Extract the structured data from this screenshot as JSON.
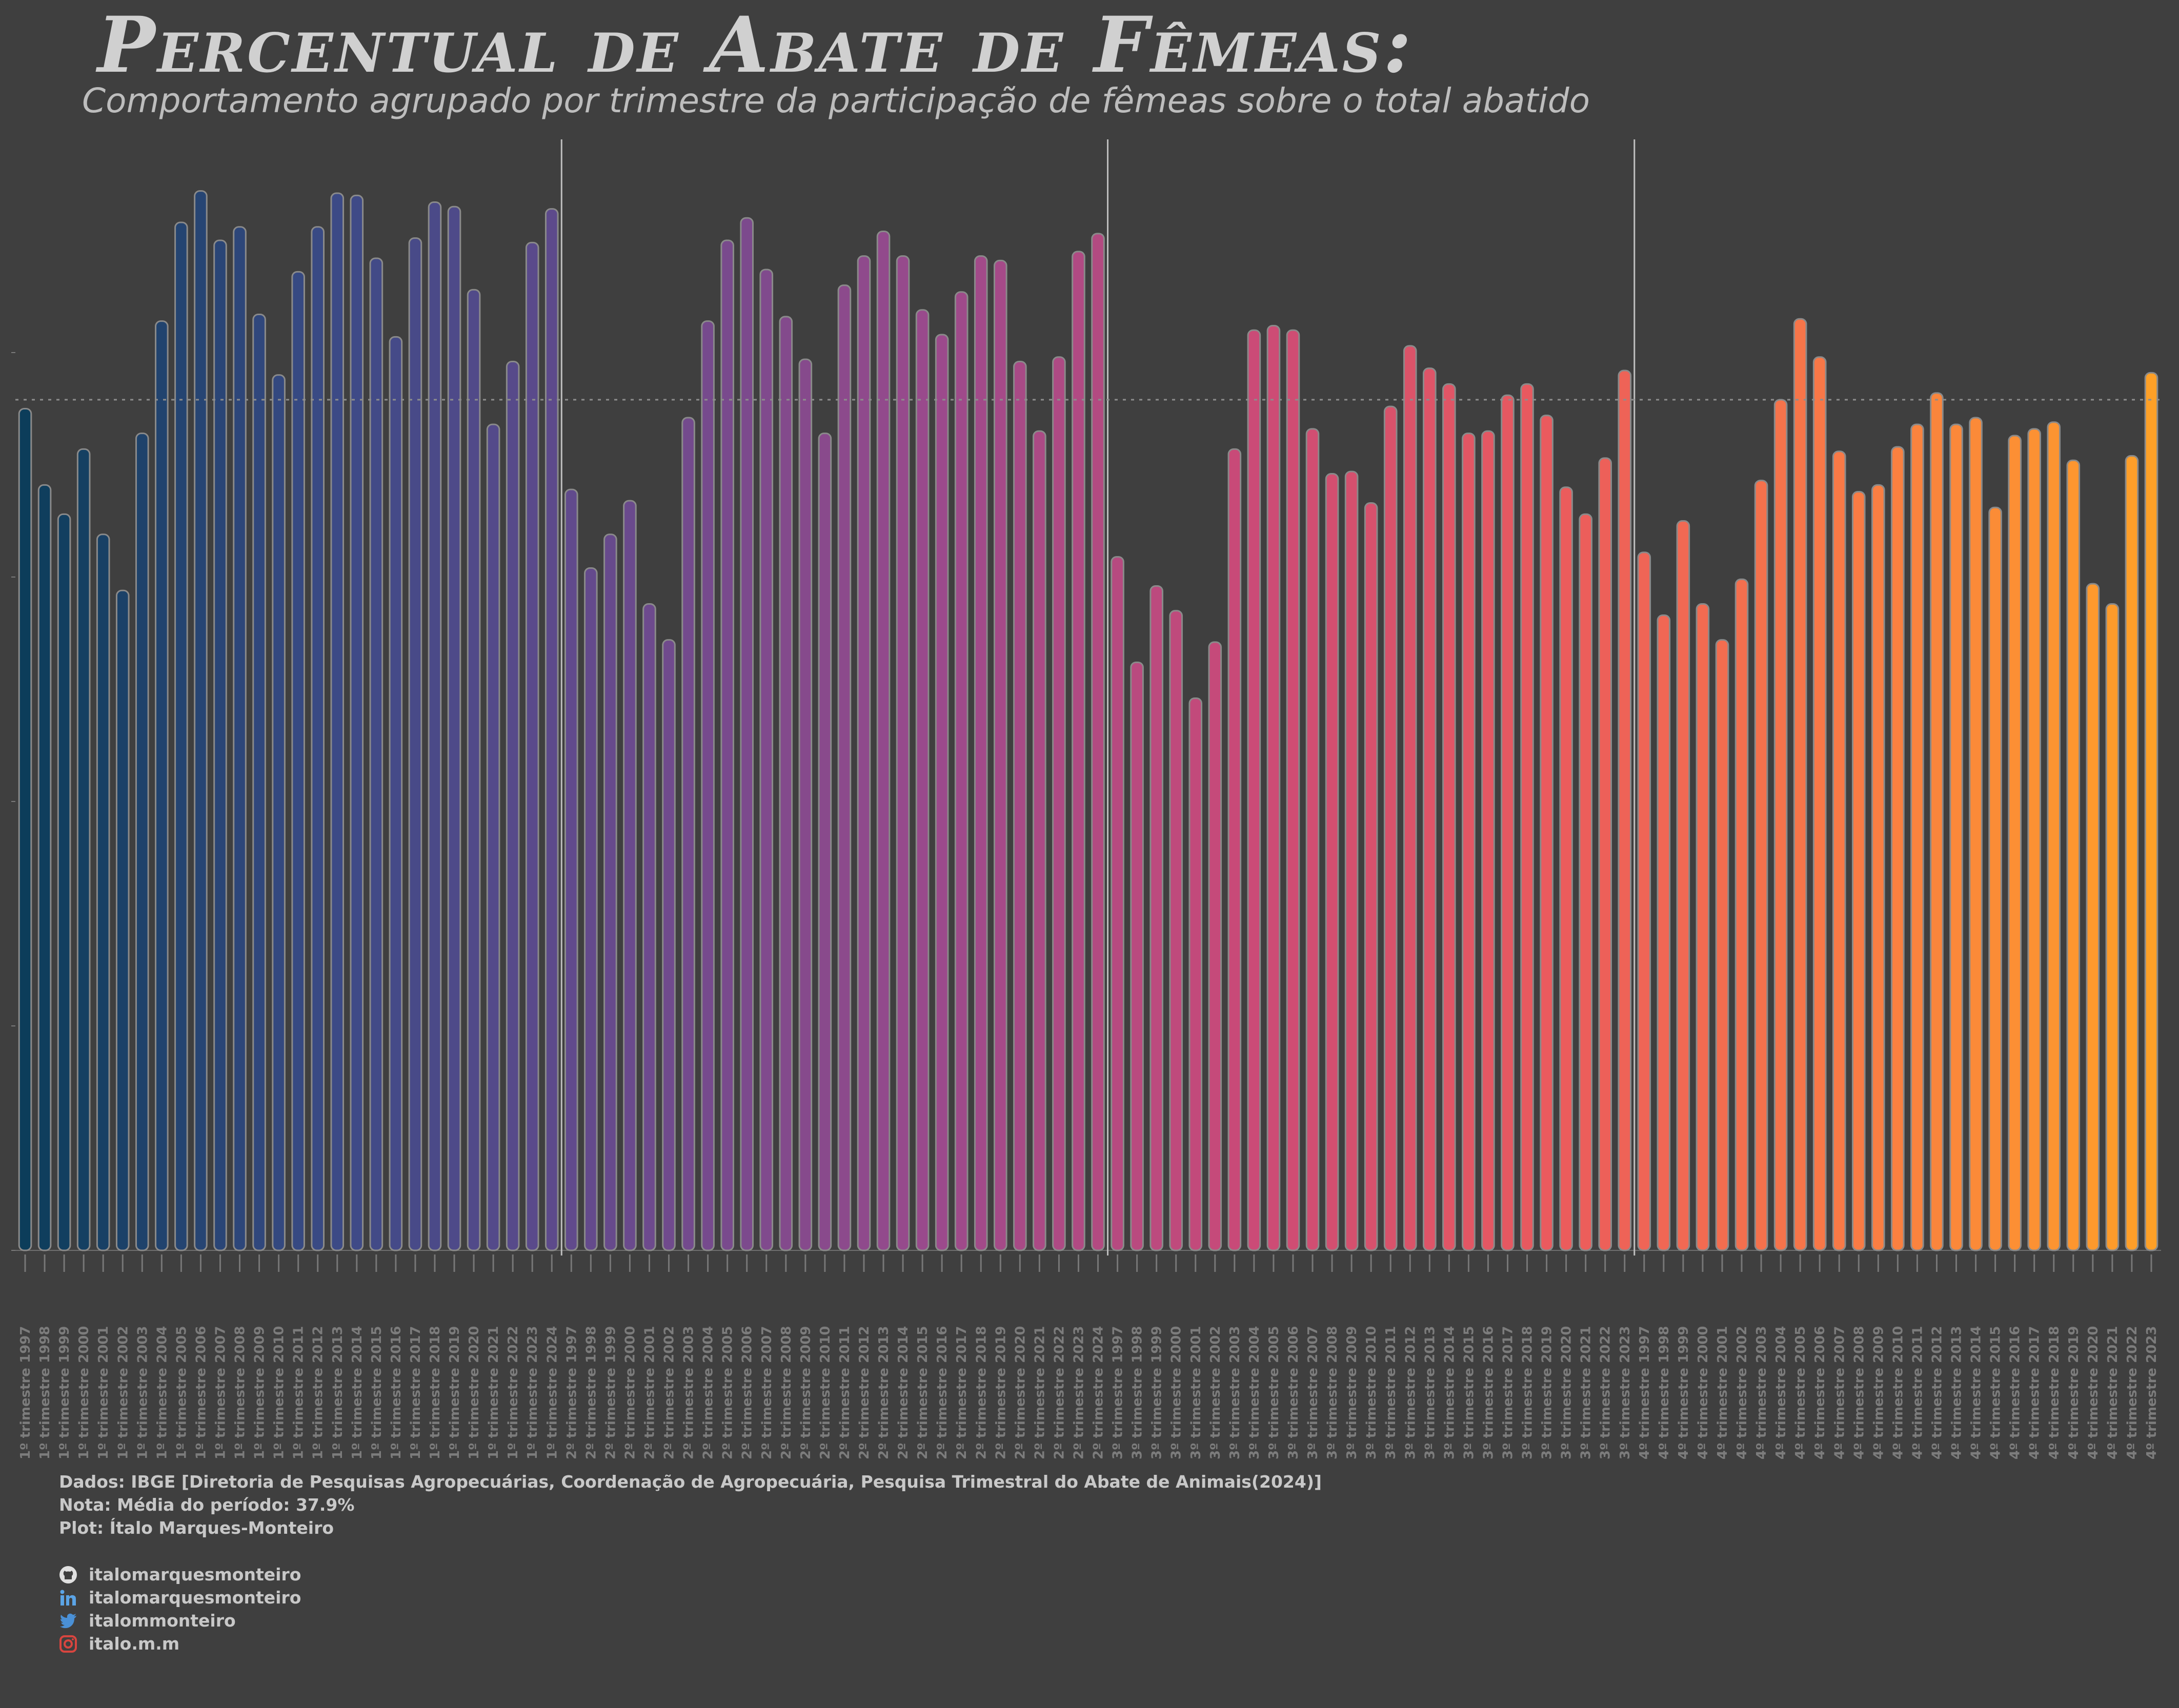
{
  "header": {
    "title": "Percentual de Abate de Fêmeas:",
    "subtitle": "Comportamento agrupado por trimestre da participação de fêmeas sobre o total abatido"
  },
  "footer": {
    "source": "Dados: IBGE [Diretoria de Pesquisas Agropecuárias, Coordenação de Agropecuária, Pesquisa Trimestral do Abate de Animais(2024)]",
    "note": "Nota: Média do período: 37.9%",
    "plot": "Plot: Ítalo Marques-Monteiro",
    "social": [
      {
        "icon": "github-icon",
        "label": "italomarquesmonteiro"
      },
      {
        "icon": "linkedin-icon",
        "label": "italomarquesmonteiro"
      },
      {
        "icon": "twitter-icon",
        "label": "italommonteiro"
      },
      {
        "icon": "instagram-icon",
        "label": "italo.m.m"
      }
    ]
  },
  "chart_data": {
    "type": "bar",
    "mean_line": 37.9,
    "ylim": [
      0,
      50
    ],
    "grid": false,
    "gradient_colors": [
      "#0c3d5a",
      "#3b4a86",
      "#6a4a8d",
      "#9b4a8c",
      "#c94a78",
      "#ea5a5e",
      "#f97a45",
      "#fea027"
    ],
    "groups": [
      {
        "quarter": "1º trimestre",
        "years": [
          1997,
          1998,
          1999,
          2000,
          2001,
          2002,
          2003,
          2004,
          2005,
          2006,
          2007,
          2008,
          2009,
          2010,
          2011,
          2012,
          2013,
          2014,
          2015,
          2016,
          2017,
          2018,
          2019,
          2020,
          2021,
          2022,
          2023,
          2024
        ],
        "values": [
          37.5,
          34.1,
          32.8,
          35.7,
          31.9,
          29.4,
          36.4,
          41.4,
          45.8,
          47.2,
          45.0,
          45.6,
          41.7,
          39.0,
          43.6,
          45.6,
          47.1,
          47.0,
          44.2,
          40.7,
          45.1,
          46.7,
          46.5,
          42.8,
          36.8,
          39.6,
          44.9,
          46.4
        ]
      },
      {
        "quarter": "2º trimestre",
        "years": [
          1997,
          1998,
          1999,
          2000,
          2001,
          2002,
          2003,
          2004,
          2005,
          2006,
          2007,
          2008,
          2009,
          2010,
          2011,
          2012,
          2013,
          2014,
          2015,
          2016,
          2017,
          2018,
          2019,
          2020,
          2021,
          2022,
          2023,
          2024
        ],
        "values": [
          33.9,
          30.4,
          31.9,
          33.4,
          28.8,
          27.2,
          37.1,
          41.4,
          45.0,
          46.0,
          43.7,
          41.6,
          39.7,
          36.4,
          43.0,
          44.3,
          45.4,
          44.3,
          41.9,
          40.8,
          42.7,
          44.3,
          44.1,
          39.6,
          36.5,
          39.8,
          44.5,
          45.3
        ]
      },
      {
        "quarter": "3º trimestre",
        "years": [
          1997,
          1998,
          1999,
          2000,
          2001,
          2002,
          2003,
          2004,
          2005,
          2006,
          2007,
          2008,
          2009,
          2010,
          2011,
          2012,
          2013,
          2014,
          2015,
          2016,
          2017,
          2018,
          2019,
          2020,
          2021,
          2022,
          2023
        ],
        "values": [
          30.9,
          26.2,
          29.6,
          28.5,
          24.6,
          27.1,
          35.7,
          41.0,
          41.2,
          41.0,
          36.6,
          34.6,
          34.7,
          33.3,
          37.6,
          40.3,
          39.3,
          38.6,
          36.4,
          36.5,
          38.1,
          38.6,
          37.2,
          34.0,
          32.8,
          35.3,
          39.2
        ]
      },
      {
        "quarter": "4º trimestre",
        "years": [
          1997,
          1998,
          1999,
          2000,
          2001,
          2002,
          2003,
          2004,
          2005,
          2006,
          2007,
          2008,
          2009,
          2010,
          2011,
          2012,
          2013,
          2014,
          2015,
          2016,
          2017,
          2018,
          2019,
          2020,
          2021,
          2022,
          2023
        ],
        "values": [
          31.1,
          28.3,
          32.5,
          28.8,
          27.2,
          29.9,
          34.3,
          37.9,
          41.5,
          39.8,
          35.6,
          33.8,
          34.1,
          35.8,
          36.8,
          38.2,
          36.8,
          37.1,
          33.1,
          36.3,
          36.6,
          36.9,
          35.2,
          29.7,
          28.8,
          35.4,
          39.1
        ]
      }
    ]
  }
}
